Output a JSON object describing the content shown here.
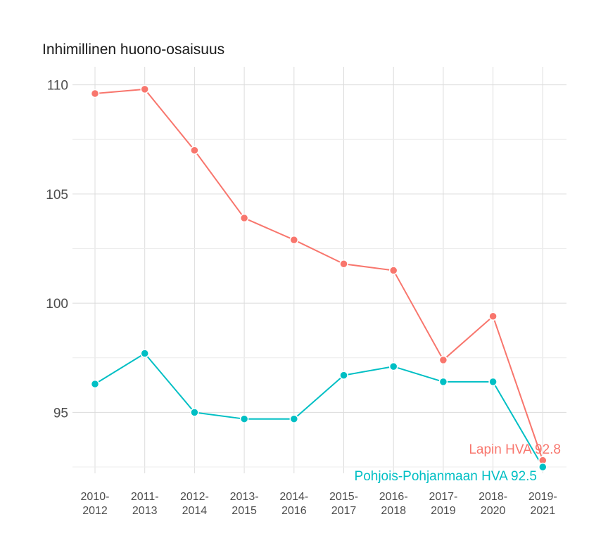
{
  "chart_data": {
    "type": "line",
    "title": "Inhimillinen huono-osaisuus",
    "xlabel": "",
    "ylabel": "",
    "categories": [
      [
        "2010-",
        "2012"
      ],
      [
        "2011-",
        "2013"
      ],
      [
        "2012-",
        "2014"
      ],
      [
        "2013-",
        "2015"
      ],
      [
        "2014-",
        "2016"
      ],
      [
        "2015-",
        "2017"
      ],
      [
        "2016-",
        "2018"
      ],
      [
        "2017-",
        "2019"
      ],
      [
        "2018-",
        "2020"
      ],
      [
        "2019-",
        "2021"
      ]
    ],
    "yticks": [
      95,
      100,
      105,
      110
    ],
    "ylim": [
      92.5,
      110.5
    ],
    "grid": true,
    "legend": "none",
    "series": [
      {
        "name": "Lapin HVA",
        "color": "#F8766D",
        "values": [
          109.6,
          109.8,
          107.0,
          103.9,
          102.9,
          101.8,
          101.5,
          97.4,
          99.4,
          92.8
        ],
        "end_label": "Lapin HVA 92.8"
      },
      {
        "name": "Pohjois-Pohjanmaan HVA",
        "color": "#00BFC4",
        "values": [
          96.3,
          97.7,
          95.0,
          94.7,
          94.7,
          96.7,
          97.1,
          96.4,
          96.4,
          92.5
        ],
        "end_label": "Pohjois-Pohjanmaan HVA 92.5"
      }
    ]
  }
}
